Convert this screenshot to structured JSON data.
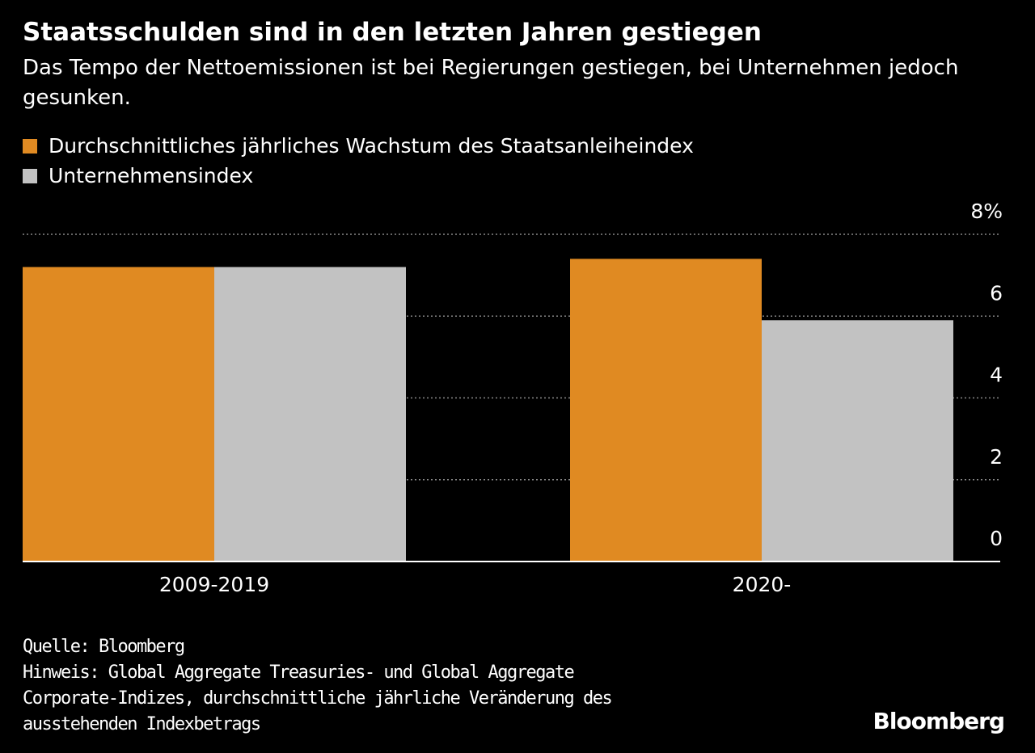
{
  "chart_data": {
    "type": "bar",
    "title": "Staatsschulden sind in den letzten Jahren gestiegen",
    "subtitle": "Das Tempo der Nettoemissionen ist bei Regierungen gestiegen, bei Unternehmen jedoch gesunken.",
    "categories": [
      "2009-2019",
      "2020-"
    ],
    "series": [
      {
        "name": "Durchschnittliches jährliches Wachstum des Staatsanleiheindex",
        "color": "#e08a22",
        "values": [
          7.2,
          7.4
        ]
      },
      {
        "name": "Unternehmensindex",
        "color": "#c2c2c2",
        "values": [
          7.2,
          5.9
        ]
      }
    ],
    "ylim": [
      0,
      8
    ],
    "yticks": [
      0,
      2,
      4,
      6,
      {
        "value": 8,
        "label": "8%"
      }
    ],
    "grid": true,
    "source": "Quelle: Bloomberg",
    "note": [
      "Hinweis: Global Aggregate Treasuries- und Global Aggregate",
      "Corporate-Indizes, durchschnittliche jährliche Veränderung des",
      "ausstehenden Indexbetrags"
    ],
    "logo": "Bloomberg"
  }
}
